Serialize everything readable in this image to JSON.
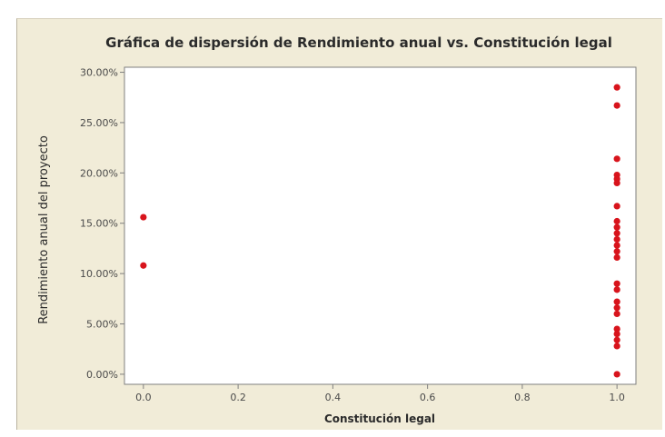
{
  "chart_data": {
    "type": "scatter",
    "title": "Gráfica de dispersión de Rendimiento anual vs. Constitución legal",
    "xlabel": "Constitución legal",
    "ylabel": "Rendimiento anual del proyecto",
    "xlim": [
      -0.04,
      1.04
    ],
    "ylim": [
      -0.01,
      0.305
    ],
    "x_ticks": [
      0.0,
      0.2,
      0.4,
      0.6,
      0.8,
      1.0
    ],
    "x_tick_labels": [
      "0.0",
      "0.2",
      "0.4",
      "0.6",
      "0.8",
      "1.0"
    ],
    "y_ticks": [
      0.0,
      0.05,
      0.1,
      0.15,
      0.2,
      0.25,
      0.3
    ],
    "y_tick_labels": [
      "0.00%",
      "5.00%",
      "10.00%",
      "15.00%",
      "20.00%",
      "25.00%",
      "30.00%"
    ],
    "grid": false,
    "legend": "none",
    "marker_color": "#d8141c",
    "points": [
      {
        "x": 0.0,
        "y": 0.156
      },
      {
        "x": 0.0,
        "y": 0.108
      },
      {
        "x": 1.0,
        "y": 0.285
      },
      {
        "x": 1.0,
        "y": 0.267
      },
      {
        "x": 1.0,
        "y": 0.214
      },
      {
        "x": 1.0,
        "y": 0.198
      },
      {
        "x": 1.0,
        "y": 0.194
      },
      {
        "x": 1.0,
        "y": 0.19
      },
      {
        "x": 1.0,
        "y": 0.167
      },
      {
        "x": 1.0,
        "y": 0.152
      },
      {
        "x": 1.0,
        "y": 0.146
      },
      {
        "x": 1.0,
        "y": 0.14
      },
      {
        "x": 1.0,
        "y": 0.134
      },
      {
        "x": 1.0,
        "y": 0.128
      },
      {
        "x": 1.0,
        "y": 0.122
      },
      {
        "x": 1.0,
        "y": 0.116
      },
      {
        "x": 1.0,
        "y": 0.09
      },
      {
        "x": 1.0,
        "y": 0.084
      },
      {
        "x": 1.0,
        "y": 0.072
      },
      {
        "x": 1.0,
        "y": 0.066
      },
      {
        "x": 1.0,
        "y": 0.06
      },
      {
        "x": 1.0,
        "y": 0.045
      },
      {
        "x": 1.0,
        "y": 0.04
      },
      {
        "x": 1.0,
        "y": 0.034
      },
      {
        "x": 1.0,
        "y": 0.028
      },
      {
        "x": 1.0,
        "y": 0.0
      }
    ]
  }
}
